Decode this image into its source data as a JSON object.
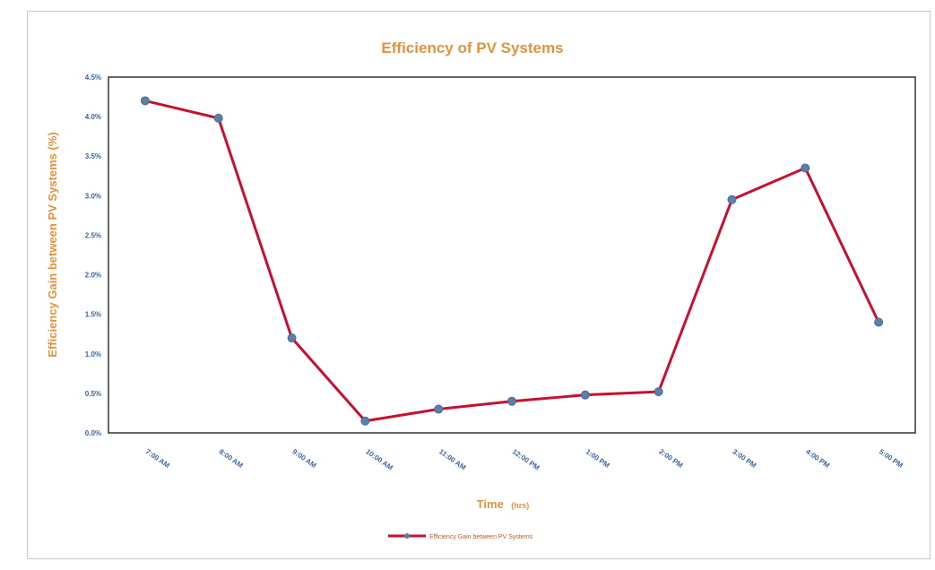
{
  "chart_data": {
    "type": "line",
    "title": "Efficiency of PV Systems",
    "xlabel": "Time",
    "xlabel_unit": "(hrs)",
    "ylabel": "Efficiency  Gain between PV Systems (%)",
    "categories": [
      "7:00 AM",
      "8:00 AM",
      "9:00 AM",
      "10:00 AM",
      "11:00 AM",
      "12:00 PM",
      "1:00 PM",
      "2:00 PM",
      "3:00 PM",
      "4:00 PM",
      "5:00 PM"
    ],
    "y_ticks": [
      "0.0%",
      "0.5%",
      "1.0%",
      "1.5%",
      "2.0%",
      "2.5%",
      "3.0%",
      "3.5%",
      "4.0%",
      "4.5%"
    ],
    "ylim": [
      0,
      4.5
    ],
    "series": [
      {
        "name": "Efficiency  Gain between PV Systems",
        "values": [
          4.2,
          3.98,
          1.2,
          0.15,
          0.3,
          0.4,
          0.48,
          0.52,
          2.95,
          3.35,
          1.4
        ]
      }
    ],
    "legend_position": "bottom",
    "grid": false
  },
  "colors": {
    "line": "#c8102e",
    "marker": "#5a7fa8",
    "title": "#e3923a",
    "tick": "#3a63a8"
  }
}
